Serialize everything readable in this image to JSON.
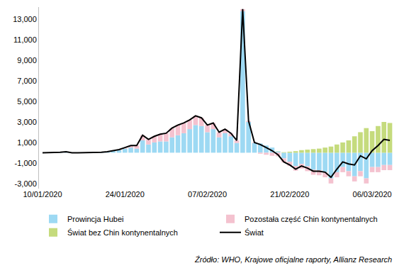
{
  "chart_data": {
    "type": "bar",
    "stacked": true,
    "grid": false,
    "legend": "bottom",
    "source": "Źródło: WHO, Krajowe oficjalne raporty, Allianz Research",
    "categories": [
      "10/01/2020",
      null,
      null,
      null,
      null,
      null,
      null,
      null,
      null,
      null,
      null,
      null,
      null,
      null,
      "24/01/2020",
      null,
      null,
      null,
      null,
      null,
      null,
      null,
      null,
      null,
      null,
      null,
      null,
      null,
      "07/02/2020",
      null,
      null,
      null,
      null,
      null,
      null,
      null,
      null,
      null,
      null,
      null,
      null,
      null,
      "21/02/2020",
      null,
      null,
      null,
      null,
      null,
      null,
      null,
      null,
      null,
      null,
      null,
      null,
      null,
      "06/03/2020",
      null,
      null,
      null
    ],
    "series": [
      {
        "name": "Prowincja Hubei",
        "color": "#9dd9f3",
        "type": "bar",
        "values": [
          0,
          0,
          0,
          50,
          100,
          0,
          0,
          0,
          0,
          0,
          50,
          100,
          200,
          250,
          400,
          500,
          400,
          1200,
          800,
          1000,
          1100,
          1100,
          1500,
          1700,
          1900,
          2300,
          2700,
          2600,
          2000,
          2300,
          1500,
          1900,
          1600,
          950,
          13800,
          3000,
          950,
          900,
          700,
          500,
          130,
          -550,
          -880,
          -1300,
          -1090,
          -1330,
          -1670,
          -1710,
          -1900,
          -2500,
          -1900,
          -1400,
          -1800,
          -2300,
          -1800,
          -2500,
          -1400,
          -1400,
          -1200,
          -1200
        ]
      },
      {
        "name": "Pozostała część Chin kontynentalnych",
        "color": "#f4c2cf",
        "type": "bar",
        "values": [
          0,
          0,
          0,
          0,
          0,
          0,
          0,
          0,
          0,
          0,
          0,
          0,
          0,
          50,
          100,
          200,
          300,
          500,
          500,
          600,
          700,
          800,
          900,
          1000,
          1000,
          900,
          900,
          800,
          700,
          600,
          500,
          400,
          300,
          250,
          200,
          100,
          50,
          -100,
          -200,
          -300,
          -350,
          -400,
          -420,
          -450,
          -460,
          -470,
          -480,
          -490,
          -500,
          -500,
          -500,
          -500,
          -500,
          -500,
          -500,
          -500,
          -500,
          -500,
          -500,
          -500
        ]
      },
      {
        "name": "Świat bez Chin kontynentalnych",
        "color": "#c5db7d",
        "type": "bar",
        "values": [
          0,
          0,
          0,
          0,
          0,
          0,
          0,
          0,
          0,
          0,
          0,
          0,
          0,
          0,
          0,
          0,
          0,
          0,
          0,
          0,
          0,
          0,
          0,
          0,
          0,
          0,
          0,
          0,
          0,
          0,
          0,
          0,
          0,
          0,
          0,
          0,
          0,
          0,
          0,
          0,
          20,
          50,
          100,
          150,
          250,
          300,
          350,
          400,
          500,
          600,
          800,
          1000,
          1200,
          1600,
          2000,
          2400,
          2100,
          2600,
          3000,
          2900
        ]
      },
      {
        "name": "Świat",
        "color": "#000000",
        "type": "line",
        "values": [
          0,
          0,
          0,
          50,
          100,
          0,
          0,
          0,
          0,
          0,
          50,
          100,
          200,
          300,
          500,
          700,
          700,
          1700,
          1300,
          1600,
          1800,
          1900,
          2400,
          2700,
          2900,
          3200,
          3600,
          3400,
          2700,
          2900,
          2000,
          2300,
          1900,
          1200,
          14000,
          3100,
          1000,
          800,
          500,
          200,
          -200,
          -900,
          -1200,
          -1600,
          -1300,
          -1500,
          -1800,
          -1800,
          -1900,
          -2400,
          -1600,
          -900,
          -1100,
          -1200,
          -300,
          -600,
          200,
          700,
          1300,
          1200
        ]
      }
    ],
    "ylim": [
      -3500,
      14200
    ],
    "yticks": [
      {
        "value": -3000,
        "label": "-3,000"
      },
      {
        "value": -1000,
        "label": "-1,000"
      },
      {
        "value": 1000,
        "label": "1,000"
      },
      {
        "value": 3000,
        "label": "3,000"
      },
      {
        "value": 5000,
        "label": "5,000"
      },
      {
        "value": 7000,
        "label": "7,000"
      },
      {
        "value": 9000,
        "label": "9,000"
      },
      {
        "value": 11000,
        "label": "11,000"
      },
      {
        "value": 13000,
        "label": "13,000"
      }
    ]
  }
}
